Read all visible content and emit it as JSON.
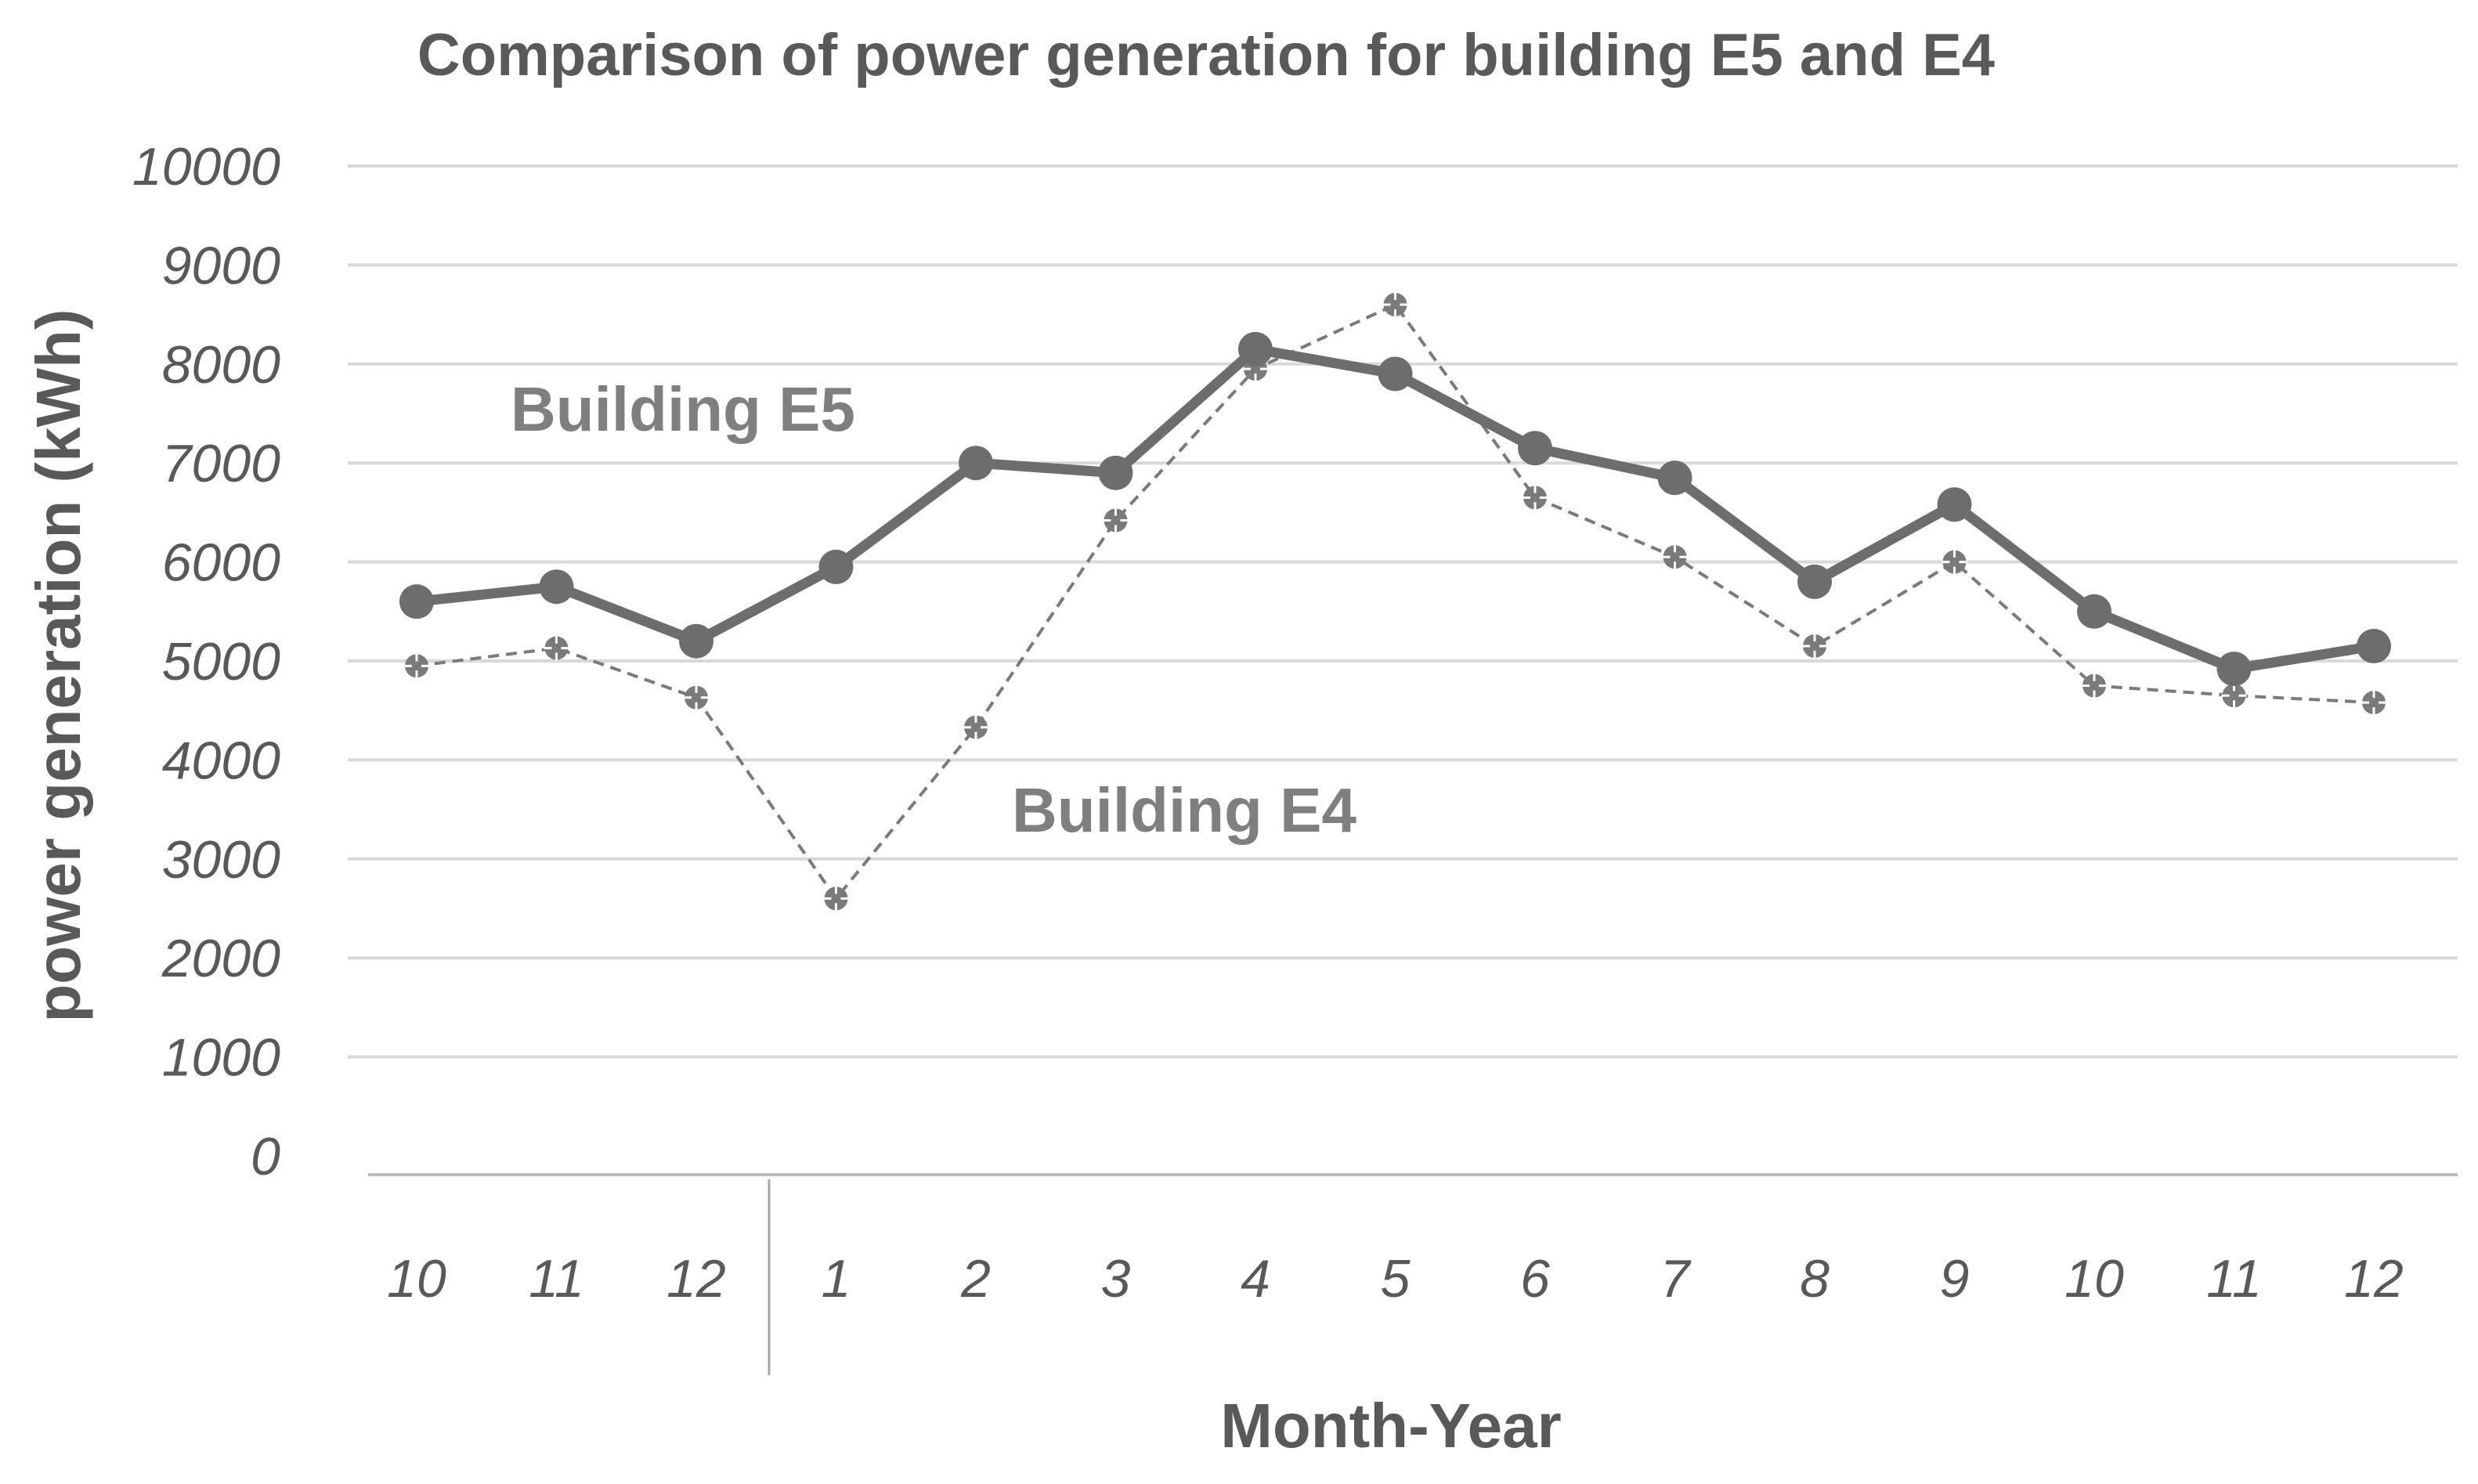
{
  "chart_data": {
    "type": "line",
    "title": "Comparison of power generation for building E5 and E4",
    "xlabel": "Month-Year",
    "ylabel": "power generation (kWh)",
    "ylim": [
      0,
      10000
    ],
    "yticks": [
      0,
      1000,
      2000,
      3000,
      4000,
      5000,
      6000,
      7000,
      8000,
      9000,
      10000
    ],
    "categories": [
      "10",
      "11",
      "12",
      "1",
      "2",
      "3",
      "4",
      "5",
      "6",
      "7",
      "8",
      "9",
      "10",
      "11",
      "12"
    ],
    "grid": true,
    "series": [
      {
        "name": "Building E5",
        "style": "solid-thick",
        "color": "#6d6d6d",
        "values": [
          5600,
          5750,
          5200,
          5950,
          7000,
          6900,
          8150,
          7900,
          7150,
          6850,
          5800,
          6580,
          5500,
          4920,
          5150
        ]
      },
      {
        "name": "Building E4",
        "style": "dashed-thin",
        "color": "#7a7a7a",
        "values": [
          4950,
          5130,
          4630,
          2600,
          4330,
          6420,
          7950,
          8600,
          6650,
          6050,
          5150,
          6000,
          4750,
          4650,
          4580
        ]
      }
    ]
  }
}
